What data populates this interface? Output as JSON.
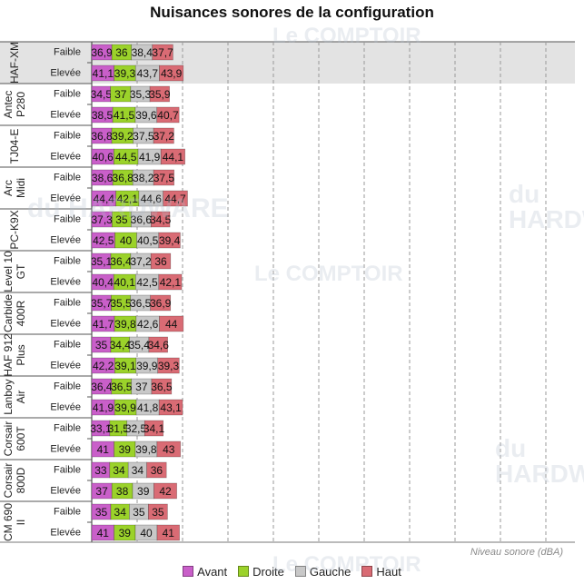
{
  "chart_data": {
    "type": "bar",
    "orientation": "horizontal",
    "stacked": true,
    "title": "Nuisances sonores de la configuration",
    "xlabel": "Niveau sonore (dBA)",
    "ylabel": "",
    "grid": true,
    "legend_placement": "bottom",
    "colors": {
      "Avant": "#c95fc9",
      "Droite": "#9bd22a",
      "Gauche": "#c8c8c8",
      "Haut": "#d96b74"
    },
    "groups": [
      {
        "name": "HAF-XM",
        "rows": [
          {
            "label": "Faible",
            "values": [
              36.9,
              36,
              38.4,
              37.7
            ],
            "text": [
              "36,9",
              "36",
              "38,4",
              "37,7"
            ]
          },
          {
            "label": "Elevée",
            "values": [
              41.1,
              39.3,
              43.7,
              43.9
            ],
            "text": [
              "41,1",
              "39,3",
              "43,7",
              "43,9"
            ]
          }
        ]
      },
      {
        "name": "Antec P280",
        "rows": [
          {
            "label": "Faible",
            "values": [
              34.5,
              37,
              35.3,
              35.9
            ],
            "text": [
              "34,5",
              "37",
              "35,3",
              "35,9"
            ]
          },
          {
            "label": "Elevée",
            "values": [
              38.5,
              41.5,
              39.6,
              40.7
            ],
            "text": [
              "38,5",
              "41,5",
              "39,6",
              "40,7"
            ]
          }
        ]
      },
      {
        "name": "TJ04-E",
        "rows": [
          {
            "label": "Faible",
            "values": [
              36.8,
              39.2,
              37.5,
              37.2
            ],
            "text": [
              "36,8",
              "39,2",
              "37,5",
              "37,2"
            ]
          },
          {
            "label": "Elevée",
            "values": [
              40.6,
              44.5,
              41.9,
              44.1
            ],
            "text": [
              "40,6",
              "44,5",
              "41,9",
              "44,1"
            ]
          }
        ]
      },
      {
        "name": "Arc Midi",
        "rows": [
          {
            "label": "Faible",
            "values": [
              38.6,
              36.8,
              38.2,
              37.5
            ],
            "text": [
              "38,6",
              "36,8",
              "38,2",
              "37,5"
            ]
          },
          {
            "label": "Elevée",
            "values": [
              44.4,
              42.1,
              44.6,
              44.7
            ],
            "text": [
              "44,4",
              "42,1",
              "44,6",
              "44,7"
            ]
          }
        ]
      },
      {
        "name": "PC-K9X",
        "rows": [
          {
            "label": "Faible",
            "values": [
              37.3,
              35,
              36.6,
              34.5
            ],
            "text": [
              "37,3",
              "35",
              "36,6",
              "34,5"
            ]
          },
          {
            "label": "Elevée",
            "values": [
              42.5,
              40,
              40.5,
              39.4
            ],
            "text": [
              "42,5",
              "40",
              "40,5",
              "39,4"
            ]
          }
        ]
      },
      {
        "name": "Level 10 GT",
        "rows": [
          {
            "label": "Faible",
            "values": [
              35.1,
              36.4,
              37.2,
              36
            ],
            "text": [
              "35,1",
              "36,4",
              "37,2",
              "36"
            ]
          },
          {
            "label": "Elevée",
            "values": [
              40.4,
              40.1,
              42.5,
              42.1
            ],
            "text": [
              "40,4",
              "40,1",
              "42,5",
              "42,1"
            ]
          }
        ]
      },
      {
        "name": "Carbide 400R",
        "rows": [
          {
            "label": "Faible",
            "values": [
              35.7,
              35.5,
              36.5,
              36.9
            ],
            "text": [
              "35,7",
              "35,5",
              "36,5",
              "36,9"
            ]
          },
          {
            "label": "Elevée",
            "values": [
              41.7,
              39.8,
              42.6,
              44
            ],
            "text": [
              "41,7",
              "39,8",
              "42,6",
              "44"
            ]
          }
        ]
      },
      {
        "name": "HAF 912 Plus",
        "rows": [
          {
            "label": "Faible",
            "values": [
              35,
              34.4,
              35.4,
              34.6
            ],
            "text": [
              "35",
              "34,4",
              "35,4",
              "34,6"
            ]
          },
          {
            "label": "Elevée",
            "values": [
              42.2,
              39.1,
              39.9,
              39.3
            ],
            "text": [
              "42,2",
              "39,1",
              "39,9",
              "39,3"
            ]
          }
        ]
      },
      {
        "name": "Lanboy Air",
        "rows": [
          {
            "label": "Faible",
            "values": [
              36.4,
              36.5,
              37,
              36.5
            ],
            "text": [
              "36,4",
              "36,5",
              "37",
              "36,5"
            ]
          },
          {
            "label": "Elevée",
            "values": [
              41.9,
              39.9,
              41.8,
              43.1
            ],
            "text": [
              "41,9",
              "39,9",
              "41,8",
              "43,1"
            ]
          }
        ]
      },
      {
        "name": "Corsair 600T",
        "rows": [
          {
            "label": "Faible",
            "values": [
              33.1,
              31.5,
              32.5,
              34.1
            ],
            "text": [
              "33,1",
              "31,5",
              "32,5",
              "34,1"
            ]
          },
          {
            "label": "Elevée",
            "values": [
              41,
              39,
              39.8,
              43
            ],
            "text": [
              "41",
              "39",
              "39,8",
              "43"
            ]
          }
        ]
      },
      {
        "name": "Corsair 800D",
        "rows": [
          {
            "label": "Faible",
            "values": [
              33,
              34,
              34,
              36
            ],
            "text": [
              "33",
              "34",
              "34",
              "36"
            ]
          },
          {
            "label": "Elevée",
            "values": [
              37,
              38,
              39,
              42
            ],
            "text": [
              "37",
              "38",
              "39",
              "42"
            ]
          }
        ]
      },
      {
        "name": "CM 690 II",
        "rows": [
          {
            "label": "Faible",
            "values": [
              35,
              34,
              35,
              35
            ],
            "text": [
              "35",
              "34",
              "35",
              "35"
            ]
          },
          {
            "label": "Elevée",
            "values": [
              41,
              39,
              40,
              41
            ],
            "text": [
              "41",
              "39",
              "40",
              "41"
            ]
          }
        ]
      }
    ],
    "series": [
      {
        "name": "Avant"
      },
      {
        "name": "Droite"
      },
      {
        "name": "Gauche"
      },
      {
        "name": "Haut"
      }
    ]
  },
  "watermark": {
    "line1": "Le COMPTOIR",
    "line2": "du HARDWARE"
  }
}
